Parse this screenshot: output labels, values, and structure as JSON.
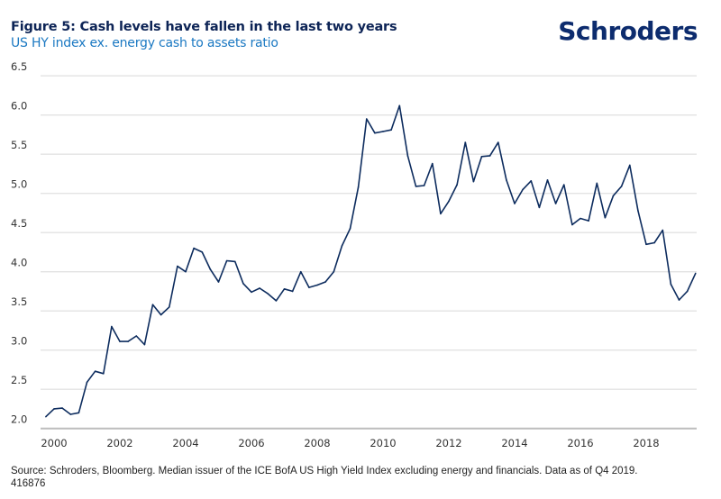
{
  "header": {
    "title": "Figure 5: Cash levels have fallen in the last two years",
    "subtitle": "US HY index ex. energy cash to assets ratio",
    "logo_text": "Schroders"
  },
  "footer": {
    "source": "Source: Schroders, Bloomberg. Median issuer of the ICE BofA US High Yield Index excluding energy and financials. Data as of Q4 2019.",
    "code": "416876"
  },
  "colors": {
    "line": "#0d2c5e",
    "grid": "#e3e3e3",
    "axis": "#bdbdbd",
    "title": "#0d2456",
    "subtitle": "#1a78c2"
  },
  "chart_data": {
    "type": "line",
    "title": "Figure 5: Cash levels have fallen in the last two years",
    "subtitle": "US HY index ex. energy cash to assets ratio",
    "xlabel": "",
    "ylabel": "",
    "x_start": 1999.75,
    "x_step": 0.25,
    "xticks": [
      "2000",
      "2002",
      "2004",
      "2006",
      "2008",
      "2010",
      "2012",
      "2014",
      "2016",
      "2018"
    ],
    "yticks": [
      "2.0",
      "2.5",
      "3.0",
      "3.5",
      "4.0",
      "4.5",
      "5.0",
      "5.5",
      "6.0",
      "6.5"
    ],
    "ylim": [
      2.0,
      6.5
    ],
    "grid": true,
    "legend": "none",
    "series": [
      {
        "name": "Cash to assets ratio",
        "values": [
          2.15,
          2.25,
          2.26,
          2.18,
          2.2,
          2.59,
          2.73,
          2.7,
          3.3,
          3.11,
          3.11,
          3.18,
          3.07,
          3.58,
          3.45,
          3.55,
          4.07,
          4.0,
          4.3,
          4.25,
          4.03,
          3.87,
          4.14,
          4.13,
          3.85,
          3.74,
          3.79,
          3.72,
          3.63,
          3.78,
          3.75,
          4.0,
          3.8,
          3.83,
          3.87,
          4.0,
          4.33,
          4.55,
          5.08,
          5.95,
          5.77,
          5.79,
          5.81,
          6.12,
          5.48,
          5.09,
          5.1,
          5.38,
          4.74,
          4.9,
          5.11,
          5.65,
          5.15,
          5.47,
          5.48,
          5.65,
          5.17,
          4.87,
          5.05,
          5.16,
          4.82,
          5.17,
          4.87,
          5.11,
          4.6,
          4.68,
          4.65,
          5.13,
          4.69,
          4.97,
          5.09,
          5.36,
          4.78,
          4.35,
          4.37,
          4.53,
          3.84,
          3.64,
          3.75,
          3.98
        ]
      }
    ]
  }
}
